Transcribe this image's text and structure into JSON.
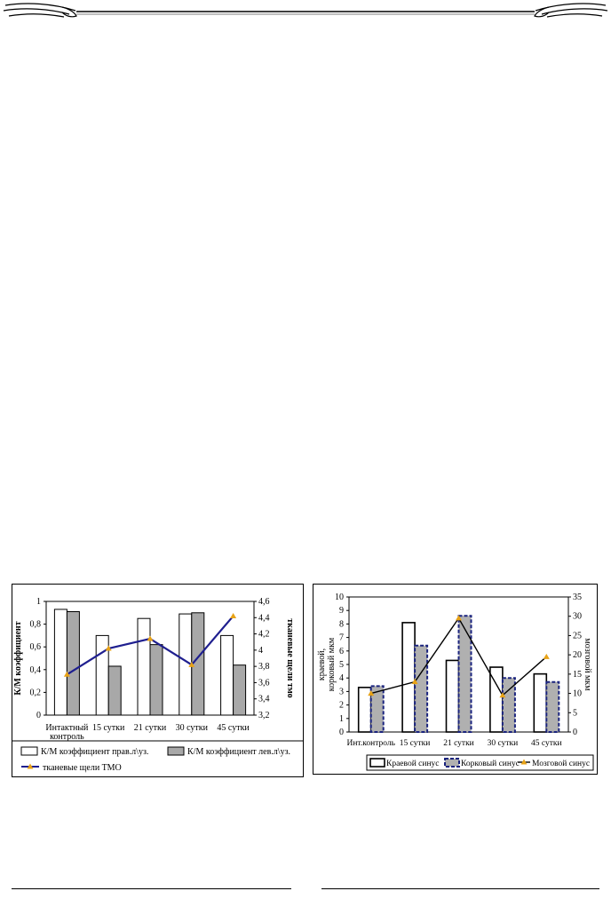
{
  "chart_data": [
    {
      "type": "bar",
      "categories": [
        "Интактный контроль",
        "15 сутки",
        "21 сутки",
        "30 сутки",
        "45 сутки"
      ],
      "category_lines": [
        [
          "Интактный",
          "контроль"
        ],
        [
          "15 сутки"
        ],
        [
          "21 сутки"
        ],
        [
          "30 сутки"
        ],
        [
          "45 сутки"
        ]
      ],
      "series": [
        {
          "name": "К/М коэффициент прав.л\\уз.",
          "kind": "bar",
          "axis": "left",
          "color": "#ffffff",
          "values": [
            0.93,
            0.7,
            0.85,
            0.89,
            0.7
          ]
        },
        {
          "name": "К/М коэффициент лев.л\\уз.",
          "kind": "bar",
          "axis": "left",
          "color": "#a8a8a8",
          "values": [
            0.91,
            0.43,
            0.62,
            0.9,
            0.44
          ]
        },
        {
          "name": "тканевые щели ТМО",
          "kind": "line",
          "axis": "right",
          "color": "#1f1f8f",
          "marker_color": "#e8a317",
          "values": [
            3.7,
            4.02,
            4.14,
            3.82,
            4.42
          ]
        }
      ],
      "ylabel": "К/М коэффициент",
      "y2label": "тканевые щели тмо",
      "ylim": [
        0,
        1
      ],
      "y_ticks": [
        "0",
        "0,2",
        "0,4",
        "0,6",
        "0,8",
        "1"
      ],
      "y2lim": [
        3.2,
        4.6
      ],
      "y2_ticks": [
        "3,2",
        "3,4",
        "3,6",
        "3,8",
        "4",
        "4,2",
        "4,4",
        "4,6"
      ],
      "legend_position": "bottom"
    },
    {
      "type": "bar",
      "categories": [
        "Инт.контроль",
        "15 сутки",
        "21 сутки",
        "30 сутки",
        "45 сутки"
      ],
      "series": [
        {
          "name": "Краевой синус",
          "kind": "bar",
          "axis": "left",
          "color": "#ffffff",
          "values": [
            3.3,
            8.1,
            5.3,
            4.8,
            4.3
          ]
        },
        {
          "name": "Корковый синус",
          "kind": "bar",
          "axis": "left",
          "color": "#b0b0b0",
          "border": "#1a237e",
          "values": [
            3.4,
            6.4,
            8.6,
            4.0,
            3.7
          ]
        },
        {
          "name": "Мозговой синус",
          "kind": "line",
          "axis": "right",
          "color": "#000000",
          "marker_color": "#e8a317",
          "values": [
            10,
            13,
            29.5,
            9.5,
            19.5
          ]
        }
      ],
      "ylabel_lines": [
        "краевой,",
        "корковый мкм"
      ],
      "y2label": "мозговой мкм",
      "ylim": [
        0,
        10
      ],
      "y_ticks": [
        "0",
        "1",
        "2",
        "3",
        "4",
        "5",
        "6",
        "7",
        "8",
        "9",
        "10"
      ],
      "y2lim": [
        0,
        35
      ],
      "y2_ticks": [
        "0",
        "5",
        "10",
        "15",
        "20",
        "25",
        "30",
        "35"
      ],
      "legend_position": "bottom"
    }
  ]
}
